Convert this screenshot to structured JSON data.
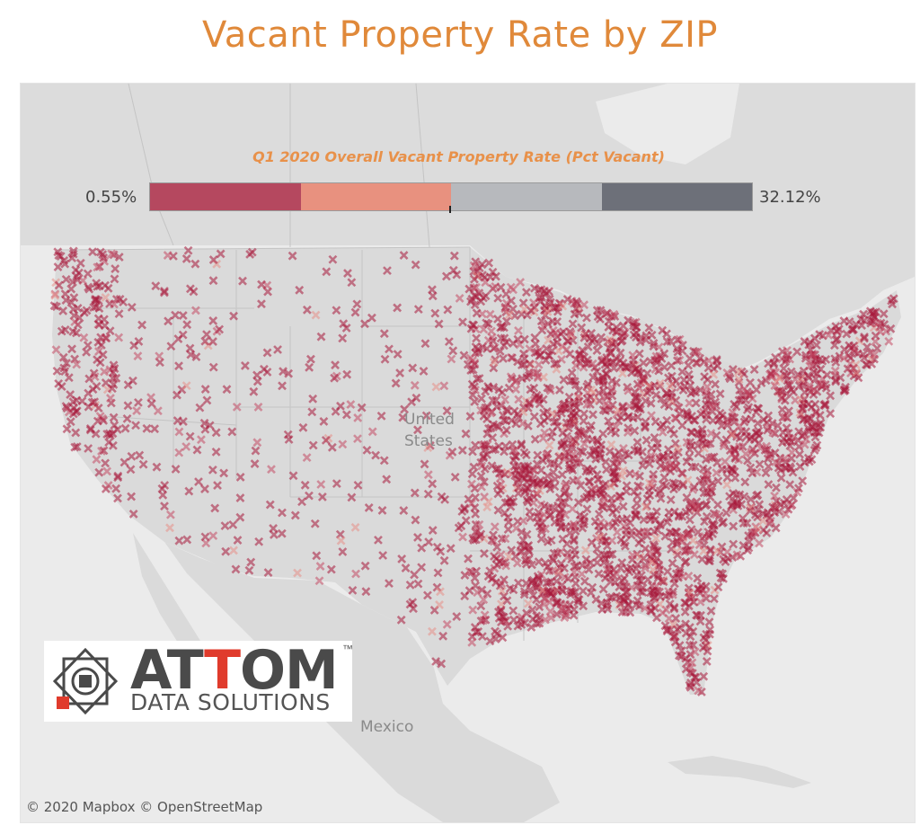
{
  "title": "Vacant Property Rate by ZIP",
  "legend": {
    "title": "Q1 2020 Overall Vacant Property Rate (Pct Vacant)",
    "min_label": "0.55%",
    "max_label": "32.12%",
    "min_value": 0.55,
    "max_value": 32.12,
    "colors": [
      "#b5485f",
      "#e8917f",
      "#b7b9bd",
      "#6d7079"
    ]
  },
  "map": {
    "country_label_line1": "United",
    "country_label_line2": "States",
    "mexico_label": "Mexico",
    "attribution": "© 2020 Mapbox  © OpenStreetMap",
    "land_color": "#dadada",
    "water_color": "#ebebeb",
    "marker_colors": [
      "#a8173b",
      "#c44a64",
      "#e88f88"
    ]
  },
  "logo": {
    "word_part1": "AT",
    "word_accent": "T",
    "word_part2": "OM",
    "trademark": "™",
    "tagline": "DATA SOLUTIONS"
  }
}
